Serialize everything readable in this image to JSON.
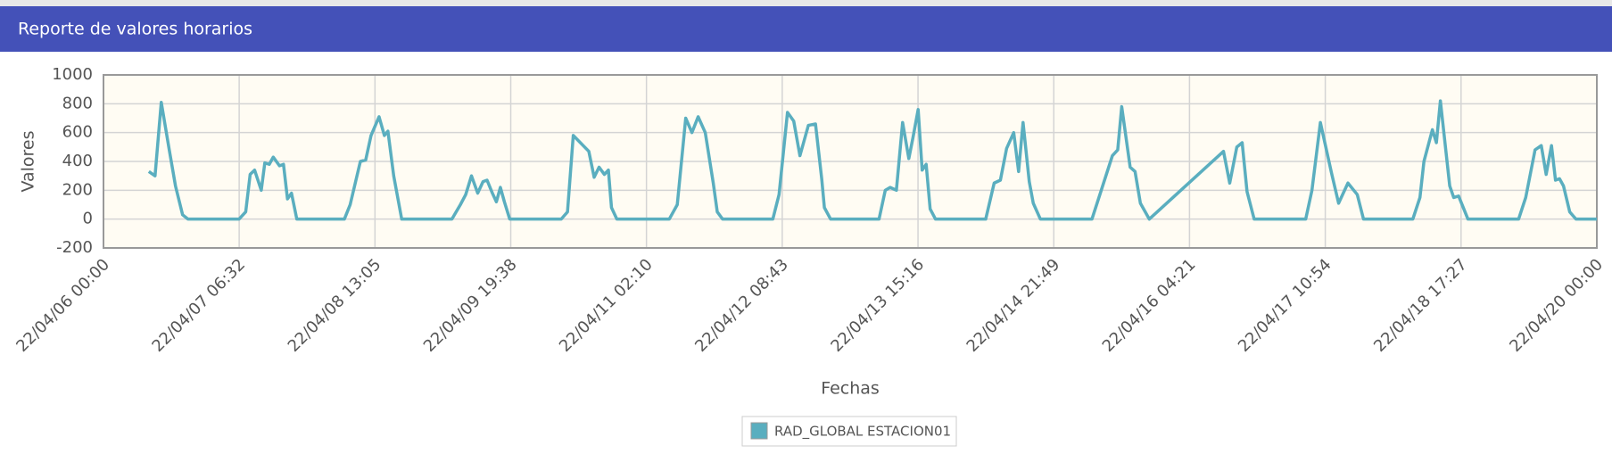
{
  "header": {
    "title": "Reporte de valores horarios"
  },
  "chart_data": {
    "type": "line",
    "x_label": "Fechas",
    "y_label": "Valores",
    "x": [
      "22/04/06 10:12",
      "22/04/06 11:36",
      "22/04/06 13:00",
      "22/04/06 14:48",
      "22/04/06 16:12",
      "22/04/06 17:48",
      "22/04/06 19:00",
      "22/04/07 06:30",
      "22/04/07 08:00",
      "22/04/07 09:00",
      "22/04/07 10:00",
      "22/04/07 11:30",
      "22/04/07 12:18",
      "22/04/07 13:18",
      "22/04/07 14:12",
      "22/04/07 15:36",
      "22/04/07 16:30",
      "22/04/07 17:24",
      "22/04/07 18:18",
      "22/04/07 19:30",
      "22/04/08 06:12",
      "22/04/08 07:30",
      "22/04/08 09:48",
      "22/04/08 11:00",
      "22/04/08 12:12",
      "22/04/08 14:00",
      "22/04/08 15:12",
      "22/04/08 16:00",
      "22/04/08 17:18",
      "22/04/08 19:06",
      "22/04/09 06:24",
      "22/04/09 08:18",
      "22/04/09 09:30",
      "22/04/09 10:48",
      "22/04/09 12:12",
      "22/04/09 13:24",
      "22/04/09 14:18",
      "22/04/09 15:30",
      "22/04/09 16:24",
      "22/04/09 17:18",
      "22/04/09 18:12",
      "22/04/09 19:24",
      "22/04/10 07:00",
      "22/04/10 08:24",
      "22/04/10 09:42",
      "22/04/10 13:12",
      "22/04/10 14:24",
      "22/04/10 15:30",
      "22/04/10 16:42",
      "22/04/10 17:36",
      "22/04/10 18:18",
      "22/04/10 19:30",
      "22/04/11 07:18",
      "22/04/11 09:06",
      "22/04/11 11:00",
      "22/04/11 12:24",
      "22/04/11 13:48",
      "22/04/11 15:24",
      "22/04/11 17:12",
      "22/04/11 18:06",
      "22/04/11 19:18",
      "22/04/12 06:36",
      "22/04/12 08:00",
      "22/04/12 09:54",
      "22/04/12 11:18",
      "22/04/12 12:42",
      "22/04/12 14:36",
      "22/04/12 16:12",
      "22/04/12 17:36",
      "22/04/12 18:12",
      "22/04/12 19:36",
      "22/04/13 06:30",
      "22/04/13 07:54",
      "22/04/13 09:00",
      "22/04/13 10:24",
      "22/04/13 11:48",
      "22/04/13 13:12",
      "22/04/13 14:06",
      "22/04/13 15:18",
      "22/04/13 16:12",
      "22/04/13 17:06",
      "22/04/13 18:00",
      "22/04/13 19:12",
      "22/04/14 06:30",
      "22/04/14 08:24",
      "22/04/14 09:48",
      "22/04/14 11:12",
      "22/04/14 12:48",
      "22/04/14 13:54",
      "22/04/14 14:54",
      "22/04/14 16:18",
      "22/04/14 17:12",
      "22/04/14 18:48",
      "22/04/15 06:24",
      "22/04/15 08:30",
      "22/04/15 11:00",
      "22/04/15 12:12",
      "22/04/15 13:06",
      "22/04/15 15:00",
      "22/04/15 16:06",
      "22/04/15 17:18",
      "22/04/15 19:18",
      "22/04/16 12:00",
      "22/04/16 13:24",
      "22/04/16 15:00",
      "22/04/16 16:12",
      "22/04/16 17:18",
      "22/04/16 18:54",
      "22/04/17 06:30",
      "22/04/17 07:54",
      "22/04/17 09:48",
      "22/04/17 12:18",
      "22/04/17 13:54",
      "22/04/17 16:00",
      "22/04/17 18:06",
      "22/04/17 19:30",
      "22/04/18 06:36",
      "22/04/18 08:12",
      "22/04/18 09:06",
      "22/04/18 11:00",
      "22/04/18 11:54",
      "22/04/18 12:48",
      "22/04/18 14:54",
      "22/04/18 15:48",
      "22/04/18 16:54",
      "22/04/18 19:00",
      "22/04/19 06:24",
      "22/04/19 08:00",
      "22/04/19 10:06",
      "22/04/19 11:30",
      "22/04/19 12:36",
      "22/04/19 13:48",
      "22/04/19 14:42",
      "22/04/19 15:36",
      "22/04/19 16:30",
      "22/04/19 17:54",
      "22/04/19 19:18",
      "22/04/20 00:00"
    ],
    "series": [
      {
        "name": "RAD_GLOBAL ESTACION01",
        "color": "#5aaebf",
        "values": [
          330,
          300,
          810,
          480,
          230,
          30,
          0,
          0,
          50,
          310,
          340,
          200,
          390,
          380,
          430,
          370,
          380,
          140,
          180,
          0,
          0,
          100,
          400,
          410,
          580,
          710,
          580,
          610,
          300,
          0,
          0,
          100,
          170,
          300,
          180,
          260,
          270,
          180,
          120,
          220,
          120,
          0,
          0,
          50,
          580,
          470,
          290,
          360,
          310,
          340,
          80,
          0,
          0,
          100,
          700,
          600,
          710,
          600,
          250,
          50,
          0,
          0,
          170,
          740,
          680,
          440,
          650,
          660,
          280,
          80,
          0,
          0,
          200,
          220,
          200,
          670,
          420,
          560,
          760,
          340,
          380,
          70,
          0,
          0,
          250,
          270,
          490,
          600,
          330,
          670,
          260,
          110,
          0,
          0,
          200,
          440,
          480,
          780,
          360,
          330,
          110,
          0,
          470,
          250,
          500,
          530,
          190,
          0,
          0,
          200,
          670,
          320,
          110,
          250,
          170,
          0,
          0,
          150,
          400,
          620,
          530,
          820,
          230,
          150,
          160,
          0,
          0,
          150,
          480,
          510,
          310,
          510,
          270,
          280,
          230,
          50,
          0,
          0
        ]
      }
    ],
    "xlim": [
      "22/04/06 00:00",
      "22/04/20 00:00"
    ],
    "xticks": [
      "22/04/06 00:00",
      "22/04/07 06:32",
      "22/04/08 13:05",
      "22/04/09 19:38",
      "22/04/11 02:10",
      "22/04/12 08:43",
      "22/04/13 15:16",
      "22/04/14 21:49",
      "22/04/16 04:21",
      "22/04/17 10:54",
      "22/04/18 17:27",
      "22/04/20 00:00"
    ],
    "ylim": [
      -200,
      1000
    ],
    "yticks": [
      -200,
      0,
      200,
      400,
      600,
      800,
      1000
    ],
    "grid": true
  }
}
